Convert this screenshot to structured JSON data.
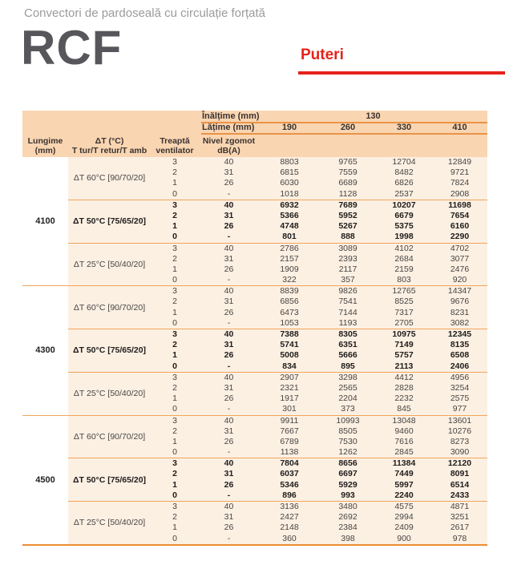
{
  "page": {
    "subtitle": "Convectori de pardoseală cu circulație forțată",
    "product": "RCF",
    "section": "Puteri"
  },
  "colors": {
    "header_bg": "#f9d5b2",
    "body_bg": "#fcf0e3",
    "line": "#f2a45b",
    "line_strong": "#ee8c33",
    "brand_red": "#e5231b"
  },
  "table": {
    "header": {
      "inaltime_label": "Înălțime (mm)",
      "inaltime_value": "130",
      "latime_label": "Lățime (mm)",
      "widths": [
        "190",
        "260",
        "330",
        "410"
      ],
      "col_lungime_1": "Lungime",
      "col_lungime_2": "(mm)",
      "col_dt_1": "ΔT (°C)",
      "col_dt_2": "T tur/T retur/T amb",
      "col_treapta_1": "Treaptă",
      "col_treapta_2": "ventilator",
      "col_zgomot_1": "Nivel zgomot",
      "col_zgomot_2": "dB(A)"
    },
    "groups": [
      {
        "lungime": "4100",
        "subgroups": [
          {
            "dt": "ΔT 60°C [90/70/20]",
            "bold": false,
            "rows": [
              {
                "treapta": "3",
                "zgomot": "40",
                "values": [
                  "8803",
                  "9765",
                  "12704",
                  "12849"
                ]
              },
              {
                "treapta": "2",
                "zgomot": "31",
                "values": [
                  "6815",
                  "7559",
                  "8482",
                  "9721"
                ]
              },
              {
                "treapta": "1",
                "zgomot": "26",
                "values": [
                  "6030",
                  "6689",
                  "6826",
                  "7824"
                ]
              },
              {
                "treapta": "0",
                "zgomot": "-",
                "values": [
                  "1018",
                  "1128",
                  "2537",
                  "2908"
                ]
              }
            ]
          },
          {
            "dt": "ΔT 50°C [75/65/20]",
            "bold": true,
            "rows": [
              {
                "treapta": "3",
                "zgomot": "40",
                "values": [
                  "6932",
                  "7689",
                  "10207",
                  "11698"
                ]
              },
              {
                "treapta": "2",
                "zgomot": "31",
                "values": [
                  "5366",
                  "5952",
                  "6679",
                  "7654"
                ]
              },
              {
                "treapta": "1",
                "zgomot": "26",
                "values": [
                  "4748",
                  "5267",
                  "5375",
                  "6160"
                ]
              },
              {
                "treapta": "0",
                "zgomot": "-",
                "values": [
                  "801",
                  "888",
                  "1998",
                  "2290"
                ]
              }
            ]
          },
          {
            "dt": "ΔT 25°C [50/40/20]",
            "bold": false,
            "rows": [
              {
                "treapta": "3",
                "zgomot": "40",
                "values": [
                  "2786",
                  "3089",
                  "4102",
                  "4702"
                ]
              },
              {
                "treapta": "2",
                "zgomot": "31",
                "values": [
                  "2157",
                  "2393",
                  "2684",
                  "3077"
                ]
              },
              {
                "treapta": "1",
                "zgomot": "26",
                "values": [
                  "1909",
                  "2117",
                  "2159",
                  "2476"
                ]
              },
              {
                "treapta": "0",
                "zgomot": "-",
                "values": [
                  "322",
                  "357",
                  "803",
                  "920"
                ]
              }
            ]
          }
        ]
      },
      {
        "lungime": "4300",
        "subgroups": [
          {
            "dt": "ΔT 60°C [90/70/20]",
            "bold": false,
            "rows": [
              {
                "treapta": "3",
                "zgomot": "40",
                "values": [
                  "8839",
                  "9826",
                  "12765",
                  "14347"
                ]
              },
              {
                "treapta": "2",
                "zgomot": "31",
                "values": [
                  "6856",
                  "7541",
                  "8525",
                  "9676"
                ]
              },
              {
                "treapta": "1",
                "zgomot": "26",
                "values": [
                  "6473",
                  "7144",
                  "7317",
                  "8231"
                ]
              },
              {
                "treapta": "0",
                "zgomot": "-",
                "values": [
                  "1053",
                  "1193",
                  "2705",
                  "3082"
                ]
              }
            ]
          },
          {
            "dt": "ΔT 50°C [75/65/20]",
            "bold": true,
            "rows": [
              {
                "treapta": "3",
                "zgomot": "40",
                "values": [
                  "7388",
                  "8305",
                  "10975",
                  "12345"
                ]
              },
              {
                "treapta": "2",
                "zgomot": "31",
                "values": [
                  "5741",
                  "6351",
                  "7149",
                  "8135"
                ]
              },
              {
                "treapta": "1",
                "zgomot": "26",
                "values": [
                  "5008",
                  "5666",
                  "5757",
                  "6508"
                ]
              },
              {
                "treapta": "0",
                "zgomot": "-",
                "values": [
                  "834",
                  "895",
                  "2113",
                  "2406"
                ]
              }
            ]
          },
          {
            "dt": "ΔT 25°C [50/40/20]",
            "bold": false,
            "rows": [
              {
                "treapta": "3",
                "zgomot": "40",
                "values": [
                  "2907",
                  "3298",
                  "4412",
                  "4956"
                ]
              },
              {
                "treapta": "2",
                "zgomot": "31",
                "values": [
                  "2321",
                  "2565",
                  "2828",
                  "3254"
                ]
              },
              {
                "treapta": "1",
                "zgomot": "26",
                "values": [
                  "1917",
                  "2204",
                  "2232",
                  "2575"
                ]
              },
              {
                "treapta": "0",
                "zgomot": "-",
                "values": [
                  "301",
                  "373",
                  "845",
                  "977"
                ]
              }
            ]
          }
        ]
      },
      {
        "lungime": "4500",
        "subgroups": [
          {
            "dt": "ΔT 60°C [90/70/20]",
            "bold": false,
            "rows": [
              {
                "treapta": "3",
                "zgomot": "40",
                "values": [
                  "9911",
                  "10993",
                  "13048",
                  "13601"
                ]
              },
              {
                "treapta": "2",
                "zgomot": "31",
                "values": [
                  "7667",
                  "8505",
                  "9460",
                  "10276"
                ]
              },
              {
                "treapta": "1",
                "zgomot": "26",
                "values": [
                  "6789",
                  "7530",
                  "7616",
                  "8273"
                ]
              },
              {
                "treapta": "0",
                "zgomot": "-",
                "values": [
                  "1138",
                  "1262",
                  "2845",
                  "3090"
                ]
              }
            ]
          },
          {
            "dt": "ΔT 50°C [75/65/20]",
            "bold": true,
            "rows": [
              {
                "treapta": "3",
                "zgomot": "40",
                "values": [
                  "7804",
                  "8656",
                  "11384",
                  "12120"
                ]
              },
              {
                "treapta": "2",
                "zgomot": "31",
                "values": [
                  "6037",
                  "6697",
                  "7449",
                  "8091"
                ]
              },
              {
                "treapta": "1",
                "zgomot": "26",
                "values": [
                  "5346",
                  "5929",
                  "5997",
                  "6514"
                ]
              },
              {
                "treapta": "0",
                "zgomot": "-",
                "values": [
                  "896",
                  "993",
                  "2240",
                  "2433"
                ]
              }
            ]
          },
          {
            "dt": "ΔT 25°C [50/40/20]",
            "bold": false,
            "rows": [
              {
                "treapta": "3",
                "zgomot": "40",
                "values": [
                  "3136",
                  "3480",
                  "4575",
                  "4871"
                ]
              },
              {
                "treapta": "2",
                "zgomot": "31",
                "values": [
                  "2427",
                  "2692",
                  "2994",
                  "3251"
                ]
              },
              {
                "treapta": "1",
                "zgomot": "26",
                "values": [
                  "2148",
                  "2384",
                  "2409",
                  "2617"
                ]
              },
              {
                "treapta": "0",
                "zgomot": "-",
                "values": [
                  "360",
                  "398",
                  "900",
                  "978"
                ]
              }
            ]
          }
        ]
      }
    ]
  }
}
